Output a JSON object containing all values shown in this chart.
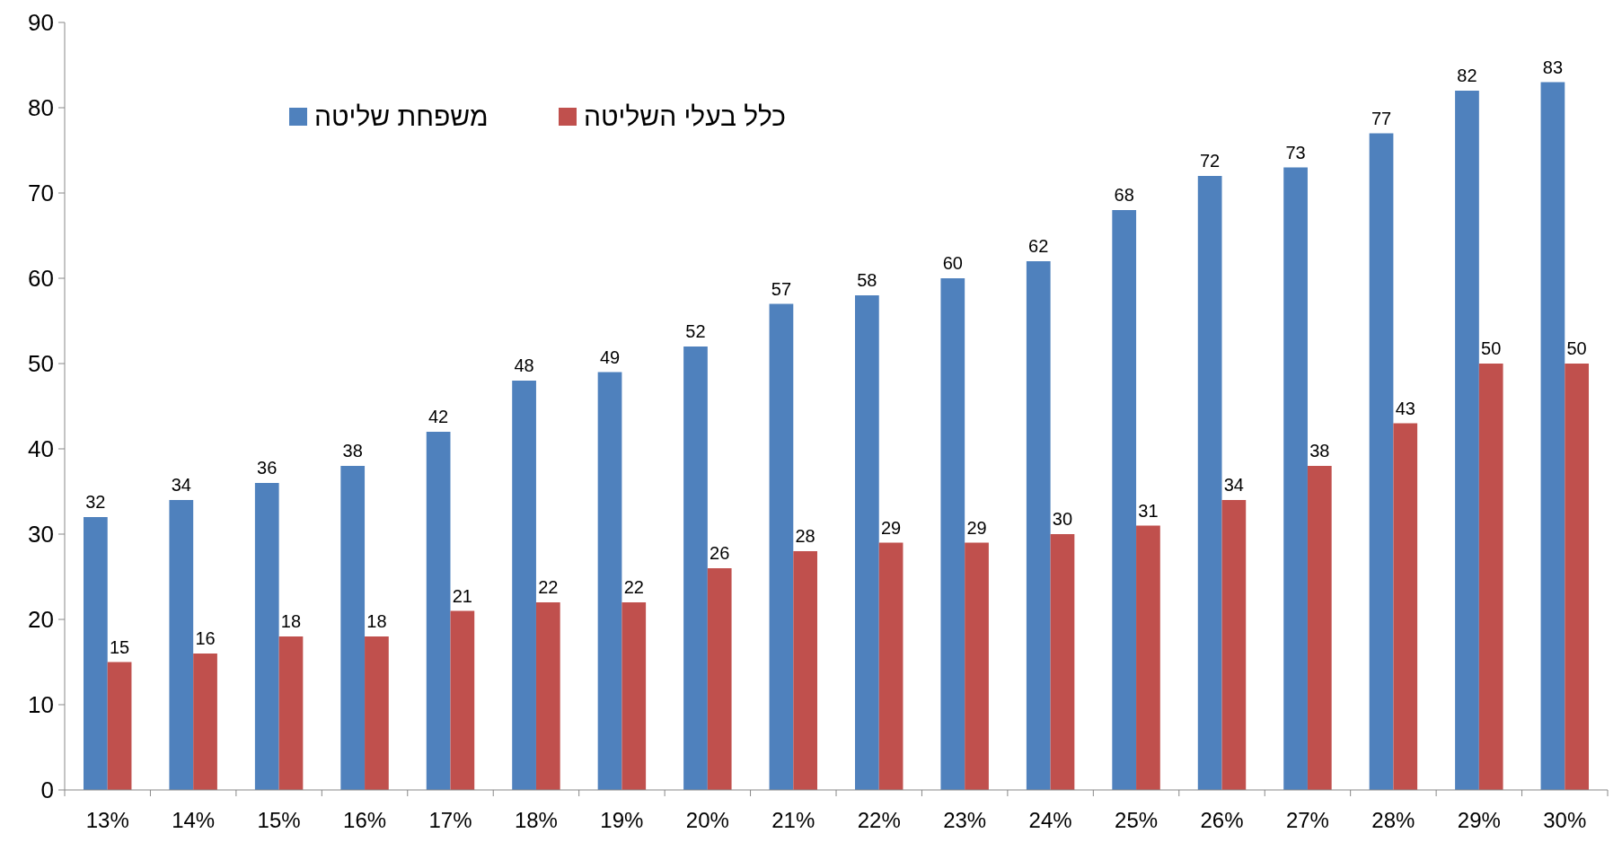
{
  "chart_data": {
    "type": "bar",
    "categories": [
      "13%",
      "14%",
      "15%",
      "16%",
      "17%",
      "18%",
      "19%",
      "20%",
      "21%",
      "22%",
      "23%",
      "24%",
      "25%",
      "26%",
      "27%",
      "28%",
      "29%",
      "30%"
    ],
    "series": [
      {
        "name": "משפחת שליטה",
        "color": "#4f81bd",
        "values": [
          32,
          34,
          36,
          38,
          42,
          48,
          49,
          52,
          57,
          58,
          60,
          62,
          68,
          72,
          73,
          77,
          82,
          83
        ]
      },
      {
        "name": "כלל בעלי השליטה",
        "color": "#c0504d",
        "values": [
          15,
          16,
          18,
          18,
          21,
          22,
          22,
          26,
          28,
          29,
          29,
          30,
          31,
          34,
          38,
          43,
          50,
          50
        ]
      }
    ],
    "ylim": [
      0,
      90
    ],
    "yticks": [
      0,
      10,
      20,
      30,
      40,
      50,
      60,
      70,
      80,
      90
    ],
    "grid": false,
    "legend": "top left",
    "data_labels": true
  }
}
